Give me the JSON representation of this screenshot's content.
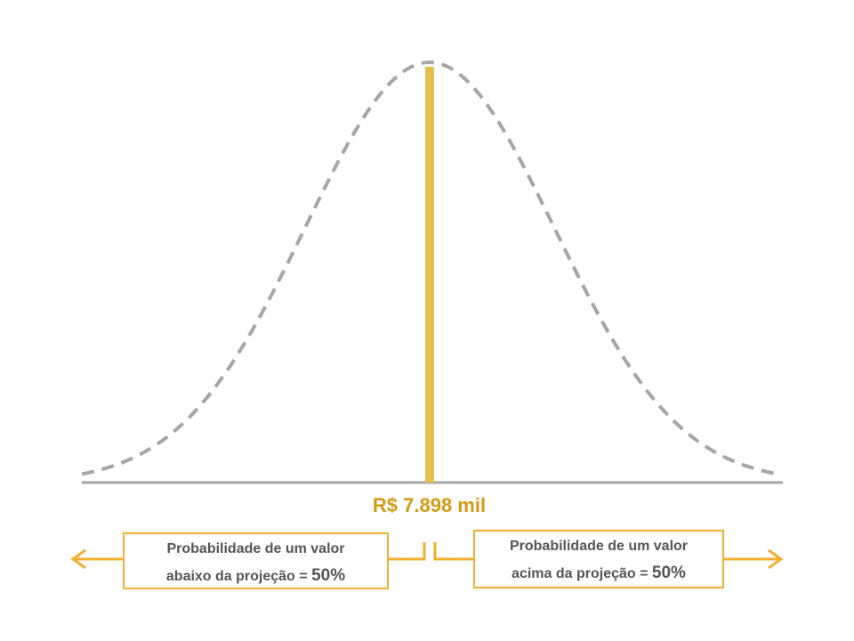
{
  "median_label": "R$ 7.898 mil",
  "left_box": {
    "line1": "Probabilidade  de um valor",
    "line2_prefix": "abaixo da projeção = ",
    "percent": "50%"
  },
  "right_box": {
    "line1": "Probabilidade  de um valor",
    "line2_prefix": "acima da projeção = ",
    "percent": "50%"
  },
  "colors": {
    "curve": "#a6a6a6",
    "median_line": "#e3c04c",
    "median_text": "#d49a16",
    "accent": "#f0b030",
    "box_text": "#555555"
  }
}
